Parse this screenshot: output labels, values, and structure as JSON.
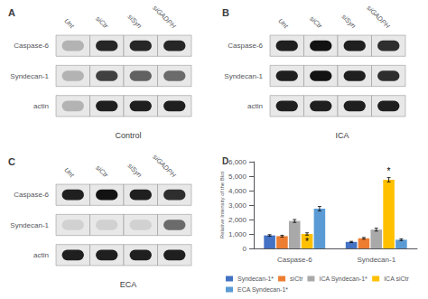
{
  "chart_data": [
    {
      "type": "heatmap",
      "title": "Control",
      "annotations": [
        {
          "text": "A"
        }
      ],
      "categories": [
        "Unt",
        "siCtr",
        "siSyn",
        "siGADPH"
      ],
      "series": [
        {
          "name": "Caspase-6",
          "values": [
            0.7,
            0.15,
            0.15,
            0.15
          ]
        },
        {
          "name": "Syndecan-1",
          "values": [
            0.7,
            0.25,
            0.38,
            0.42
          ]
        },
        {
          "name": "actin",
          "values": [
            0.7,
            0.12,
            0.12,
            0.12
          ]
        }
      ],
      "grid": false
    },
    {
      "type": "heatmap",
      "title": "ICA",
      "annotations": [
        {
          "text": "B"
        }
      ],
      "categories": [
        "Unt",
        "siCtr",
        "siSyn",
        "siGADPH"
      ],
      "series": [
        {
          "name": "Caspase-6",
          "values": [
            0.12,
            0.07,
            0.12,
            0.18
          ]
        },
        {
          "name": "Syndecan-1",
          "values": [
            0.12,
            0.07,
            0.12,
            0.18
          ]
        },
        {
          "name": "actin",
          "values": [
            0.12,
            0.12,
            0.12,
            0.12
          ]
        }
      ],
      "grid": false
    },
    {
      "type": "heatmap",
      "title": "ECA",
      "annotations": [
        {
          "text": "C"
        }
      ],
      "categories": [
        "Unt",
        "siCtr",
        "siSyn",
        "siGADPH"
      ],
      "series": [
        {
          "name": "Caspase-6",
          "values": [
            0.12,
            0.07,
            0.12,
            0.18
          ]
        },
        {
          "name": "Syndecan-1",
          "values": [
            0.82,
            0.82,
            0.82,
            0.42
          ]
        },
        {
          "name": "actin",
          "values": [
            0.12,
            0.12,
            0.12,
            0.12
          ]
        }
      ],
      "grid": false
    },
    {
      "type": "bar",
      "annotations": [
        {
          "text": "D"
        },
        {
          "text": "*",
          "category": "Caspase-6",
          "series": "ICA siCtr",
          "position": "inside"
        },
        {
          "text": "*",
          "category": "Syndecan-1",
          "series": "ICA siCtr",
          "position": "top"
        }
      ],
      "categories": [
        "Caspase-6",
        "Syndecan-1"
      ],
      "series": [
        {
          "name": "Syndecan-1*",
          "color": "#4472C4",
          "values": [
            900,
            450
          ],
          "errors": [
            50,
            40
          ]
        },
        {
          "name": "siCtr",
          "color": "#ED7D31",
          "values": [
            850,
            700
          ],
          "errors": [
            60,
            60
          ]
        },
        {
          "name": "ICA Syndecan-1*",
          "color": "#A9A9A9",
          "values": [
            1900,
            1300
          ],
          "errors": [
            100,
            100
          ]
        },
        {
          "name": "ICA siCtr",
          "color": "#FFC000",
          "values": [
            1000,
            4750
          ],
          "errors": [
            80,
            150
          ]
        },
        {
          "name": "ECA Syndecan-1*",
          "color": "#5B9BD5",
          "values": [
            2750,
            600
          ],
          "errors": [
            150,
            60
          ]
        }
      ],
      "ylabel": "Relative Intensity of the Blot",
      "ylim": [
        0,
        6000
      ],
      "yticks": [
        0,
        1000,
        2000,
        3000,
        4000,
        5000,
        6000
      ],
      "grid": false,
      "legend": "bottom"
    }
  ]
}
